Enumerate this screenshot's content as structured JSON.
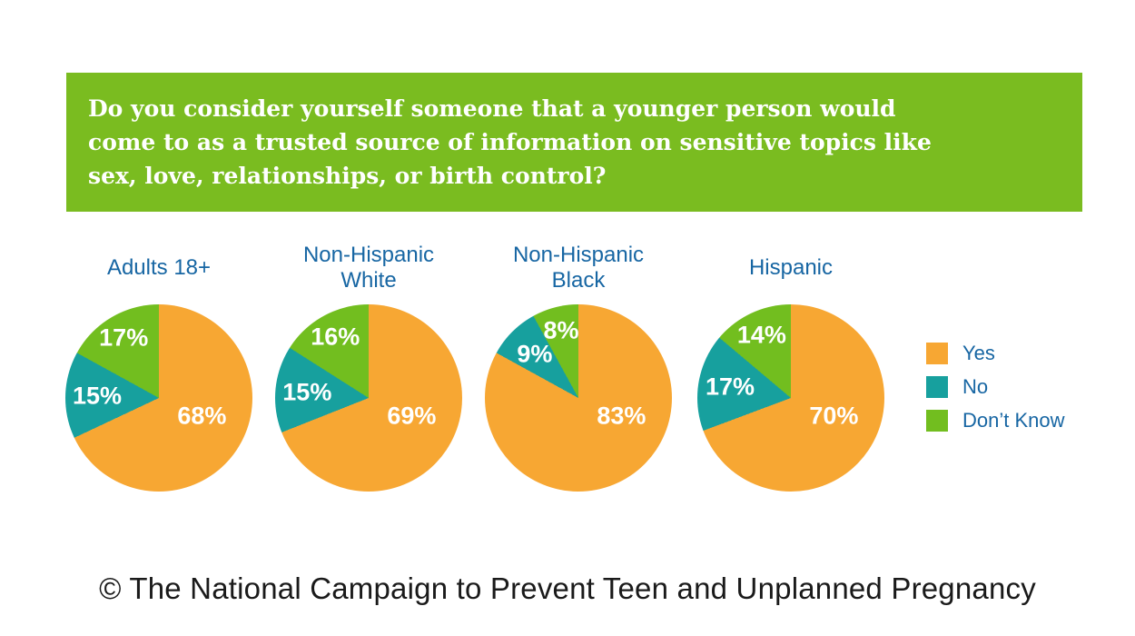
{
  "banner": {
    "bg_color": "#7abc20",
    "question_lines": [
      "Do you consider yourself someone that a younger person would",
      "come to as a trusted source of information on sensitive topics like",
      "sex, love, relationships, or birth control?"
    ]
  },
  "chart_data": {
    "type": "pie",
    "unit": "percent",
    "categories": [
      "Yes",
      "No",
      "Don’t Know"
    ],
    "series_colors": [
      "#f7a733",
      "#17a09e",
      "#72be1f"
    ],
    "slice_label_color": "#ffffff",
    "title_color": "#1766a3",
    "start_angle": "top",
    "direction": "clockwise",
    "legend_position": "right",
    "pies": [
      {
        "title": "Adults 18+",
        "values": [
          68,
          15,
          17
        ]
      },
      {
        "title": "Non-Hispanic White",
        "values": [
          69,
          15,
          16
        ]
      },
      {
        "title": "Non-Hispanic Black",
        "values": [
          83,
          9,
          8
        ]
      },
      {
        "title": "Hispanic",
        "values": [
          70,
          17,
          14
        ]
      }
    ],
    "legend": [
      "Yes",
      "No",
      "Don’t Know"
    ]
  },
  "footer": {
    "text": "© The National Campaign to Prevent Teen and Unplanned Pregnancy"
  }
}
